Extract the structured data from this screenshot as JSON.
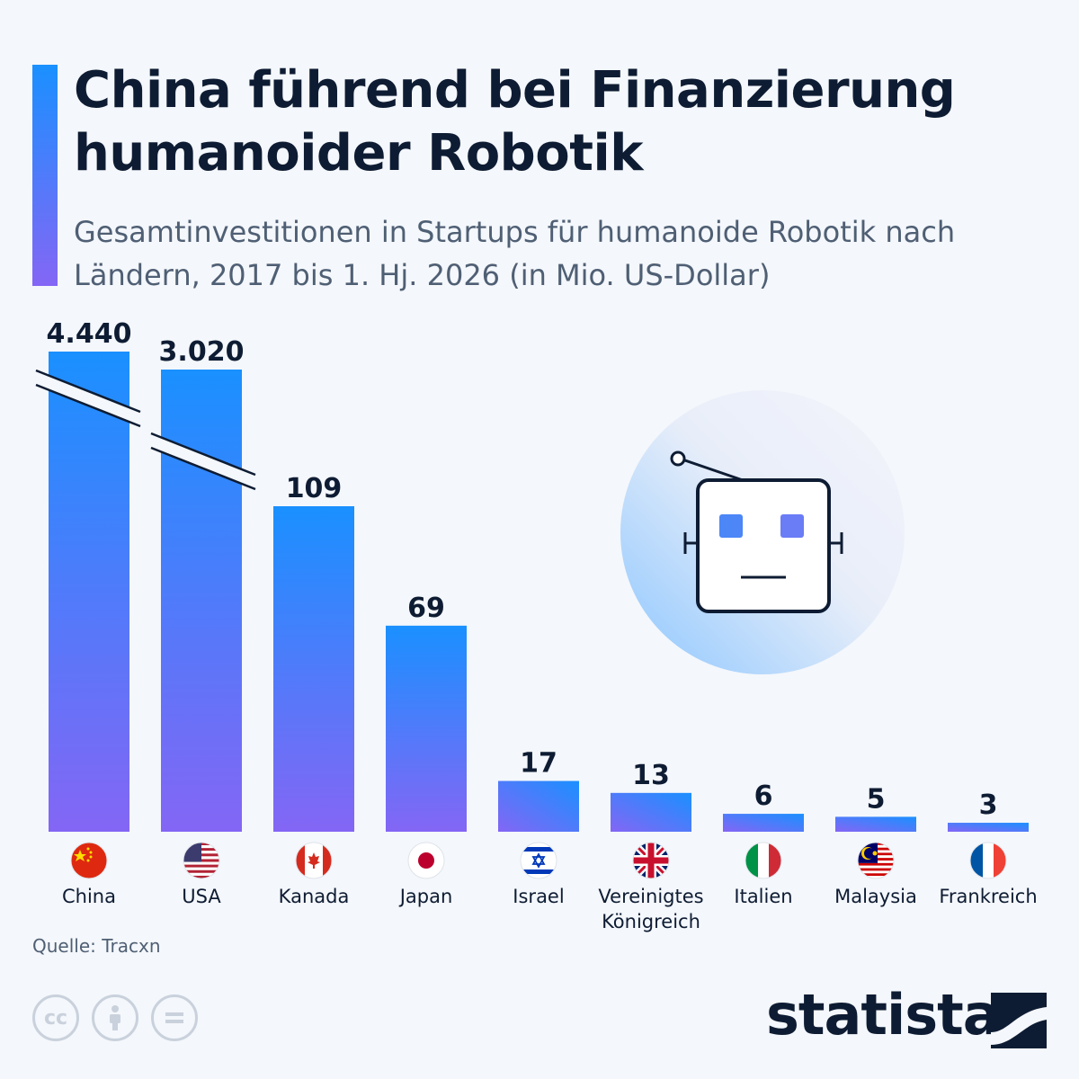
{
  "header": {
    "title": "China führend bei Finanzierung humanoider Robotik",
    "subtitle": "Gesamtinvestitionen in Startups für humanoide Robotik nach Ländern, 2017 bis 1. Hj. 2026 (in Mio. US-Dollar)"
  },
  "chart_data": {
    "type": "bar",
    "categories": [
      "China",
      "USA",
      "Kanada",
      "Japan",
      "Israel",
      "Vereinigtes Königreich",
      "Italien",
      "Malaysia",
      "Frankreich"
    ],
    "category_lines": [
      [
        "China"
      ],
      [
        "USA"
      ],
      [
        "Kanada"
      ],
      [
        "Japan"
      ],
      [
        "Israel"
      ],
      [
        "Vereinigtes",
        "Königreich"
      ],
      [
        "Italien"
      ],
      [
        "Malaysia"
      ],
      [
        "Frankreich"
      ]
    ],
    "values": [
      4440,
      3020,
      109,
      69,
      17,
      13,
      6,
      5,
      3
    ],
    "value_labels": [
      "4.440",
      "3.020",
      "109",
      "69",
      "17",
      "13",
      "6",
      "5",
      "3"
    ],
    "broken_axis_bars": [
      "China",
      "USA"
    ],
    "flags": [
      "china-flag",
      "usa-flag",
      "canada-flag",
      "japan-flag",
      "israel-flag",
      "uk-flag",
      "italy-flag",
      "malaysia-flag",
      "france-flag"
    ],
    "bar_gradient": [
      "#1a90ff",
      "#8466f5"
    ],
    "grid": false,
    "legend": "none"
  },
  "footer": {
    "source": "Quelle: Tracxn",
    "license_icons": [
      "cc-icon",
      "attribution-icon",
      "no-derivatives-icon"
    ],
    "brand": "statista"
  }
}
